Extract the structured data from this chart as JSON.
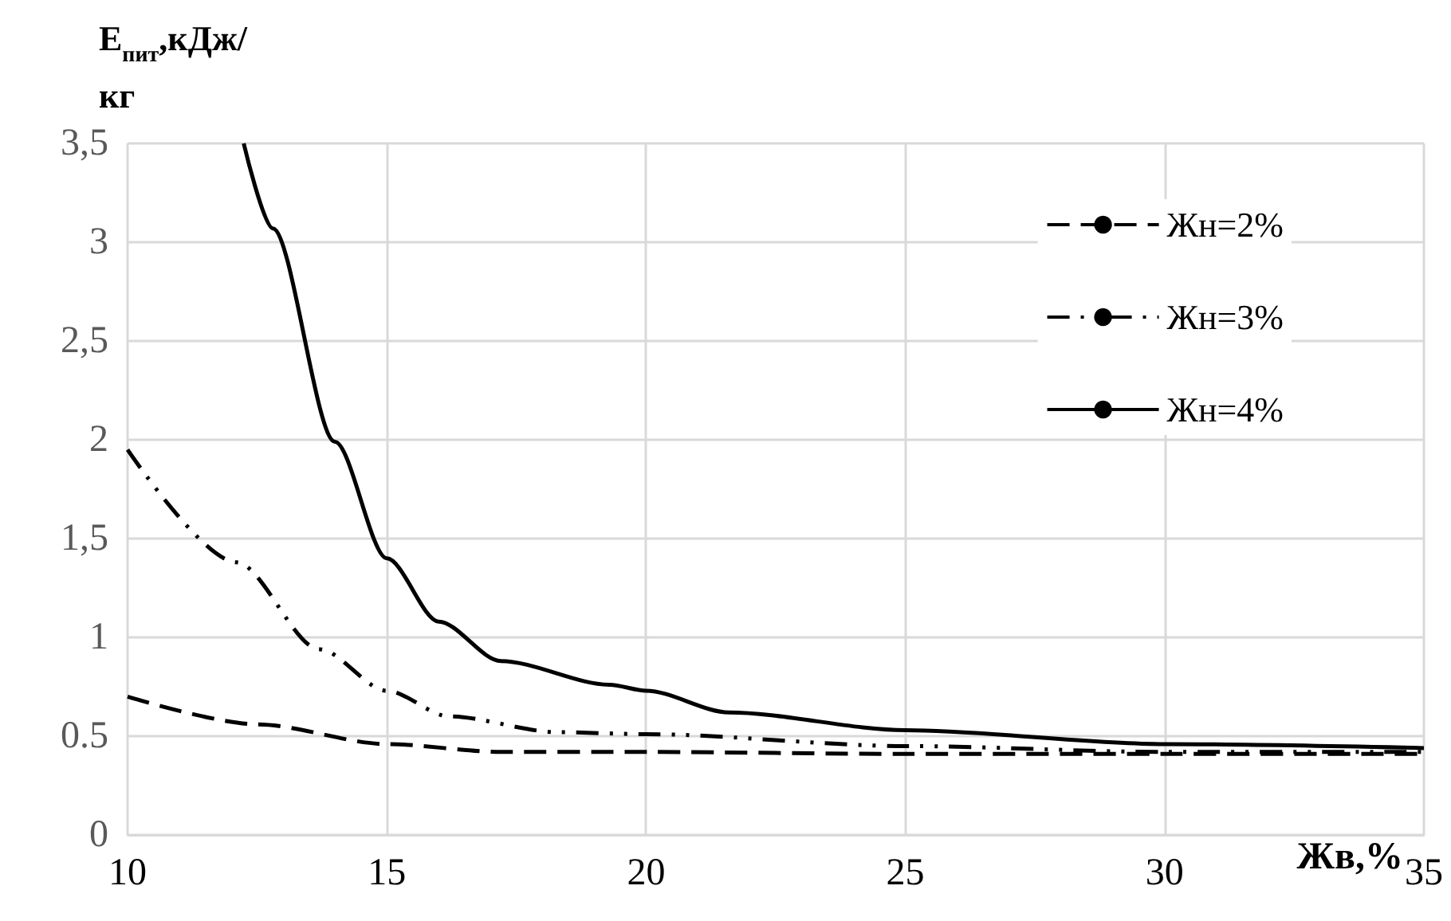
{
  "chart_data": {
    "type": "line",
    "ylabel": "E$_{пит}$,кДж/кг",
    "xlabel": "Жв,%",
    "xlim": [
      10,
      35
    ],
    "xticks": [
      10,
      15,
      20,
      25,
      30,
      35
    ],
    "ylim": [
      0,
      3.5
    ],
    "yticks": [
      0,
      {
        "value": 0.5,
        "label": "0.5"
      },
      1,
      {
        "value": 1.5,
        "label": "1,5"
      },
      2,
      {
        "value": 2.5,
        "label": "2,5"
      },
      3,
      {
        "value": 3.5,
        "label": "3,5"
      }
    ],
    "grid": true,
    "legend": "top right",
    "marker": "none",
    "series": [
      {
        "name": "Жн=2%",
        "color": "#000000",
        "line_style": "dashed",
        "x": [
          10,
          12.5,
          15,
          17.2,
          20,
          25,
          30,
          35
        ],
        "values": [
          0.7,
          0.56,
          0.46,
          0.42,
          0.42,
          0.41,
          0.41,
          0.41
        ]
      },
      {
        "name": "Жн=3%",
        "color": "#000000",
        "line_style": "dashdot",
        "x": [
          10,
          12.1,
          13.7,
          15,
          16.2,
          18.3,
          20,
          25,
          30,
          35
        ],
        "values": [
          1.95,
          1.38,
          0.94,
          0.73,
          0.6,
          0.52,
          0.51,
          0.45,
          0.42,
          0.42
        ]
      },
      {
        "name": "Жн=4%",
        "color": "#000000",
        "line_style": "solid",
        "x": [
          12.24,
          12.8,
          14,
          15,
          16,
          17.2,
          19.3,
          20,
          21.6,
          25,
          30,
          35
        ],
        "values": [
          3.5,
          3.07,
          1.99,
          1.4,
          1.08,
          0.88,
          0.76,
          0.73,
          0.62,
          0.53,
          0.46,
          0.44
        ]
      }
    ]
  }
}
